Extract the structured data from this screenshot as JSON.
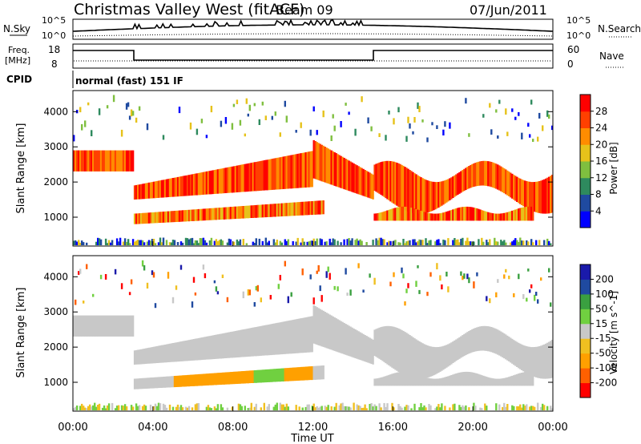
{
  "header": {
    "station": "Christmas Valley West (fitACF)",
    "beam": "Beam 09",
    "date": "07/Jun/2011"
  },
  "panel_labels": {
    "nsky": "N.Sky",
    "nsearch": "N.Search",
    "freq_line1": "Freq.",
    "freq_line2": "[MHz]",
    "nave": "Nave",
    "cpid": "CPID",
    "cpid_value": "normal (fast) 151 IF"
  },
  "noise_panel": {
    "left_ticks": [
      "10^5",
      "10^0"
    ],
    "right_ticks": [
      "10^5",
      "10^0"
    ]
  },
  "freq_panel": {
    "left_ticks": [
      "18",
      "8"
    ],
    "right_ticks": [
      "60",
      "0"
    ]
  },
  "colors": {
    "power": [
      "#0000ff",
      "#1f4aa0",
      "#2e8a5e",
      "#7fbf3f",
      "#e6c21a",
      "#ff8c00",
      "#ff4000",
      "#ff0000"
    ],
    "velocity": [
      "#ff0000",
      "#ff6000",
      "#ffa000",
      "#f0c020",
      "#c8c8c8",
      "#70d040",
      "#3aa040",
      "#1f4aa0",
      "#1a1aaa"
    ]
  },
  "chart_data": [
    {
      "type": "heatmap",
      "title": "",
      "xlabel": "",
      "ylabel": "Slant Range [km]",
      "x_ticks": [
        "00:00",
        "04:00",
        "08:00",
        "12:00",
        "16:00",
        "20:00",
        "00:00"
      ],
      "y_ticks": [
        1000,
        2000,
        3000,
        4000
      ],
      "ylim": [
        180,
        4600
      ],
      "colorbar": {
        "label": "Power [dB]",
        "ticks": [
          "4",
          "8",
          "12",
          "16",
          "20",
          "24",
          "28"
        ]
      },
      "echo_bands": [
        {
          "name": "band1",
          "start_hour": 0,
          "end_hour": 3,
          "range_km": [
            2300,
            2900
          ]
        },
        {
          "name": "band2",
          "start_hour": 3,
          "end_hour": 12,
          "range_km": [
            1500,
            2900
          ]
        },
        {
          "name": "band3",
          "start_hour": 12,
          "end_hour": 15,
          "range_km": [
            1500,
            3200
          ]
        },
        {
          "name": "band4",
          "start_hour": 15,
          "end_hour": 24,
          "range_km": [
            1500,
            2800
          ]
        }
      ]
    },
    {
      "type": "heatmap",
      "title": "",
      "xlabel": "Time UT",
      "ylabel": "Slant Range [km]",
      "x_ticks": [
        "00:00",
        "04:00",
        "08:00",
        "12:00",
        "16:00",
        "20:00",
        "00:00"
      ],
      "y_ticks": [
        1000,
        2000,
        3000,
        4000
      ],
      "ylim": [
        180,
        4600
      ],
      "colorbar": {
        "label": "Velocity [m s^-1]",
        "ticks": [
          "200",
          "100",
          "50",
          "15",
          "-15",
          "-50",
          "-100",
          "-200"
        ]
      }
    }
  ]
}
